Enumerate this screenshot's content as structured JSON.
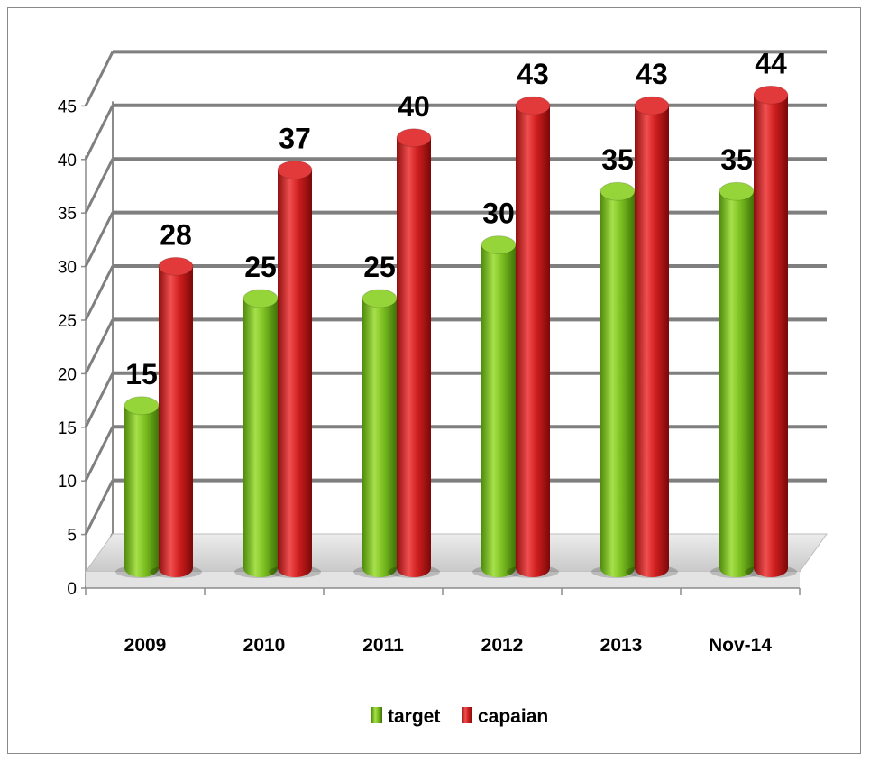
{
  "chart_data": {
    "type": "bar",
    "categories": [
      "2009",
      "2010",
      "2011",
      "2012",
      "2013",
      "Nov-14"
    ],
    "series": [
      {
        "name": "target",
        "values": [
          15,
          25,
          25,
          30,
          35,
          35
        ],
        "color": "#7cc021"
      },
      {
        "name": "capaian",
        "values": [
          28,
          37,
          40,
          43,
          43,
          44
        ],
        "color": "#d11f1f"
      }
    ],
    "ylim": [
      0,
      45
    ],
    "yticks": [
      0,
      5,
      10,
      15,
      20,
      25,
      30,
      35,
      40,
      45
    ],
    "grid": true,
    "legend": "bottom",
    "style": "3d-cylinder"
  }
}
